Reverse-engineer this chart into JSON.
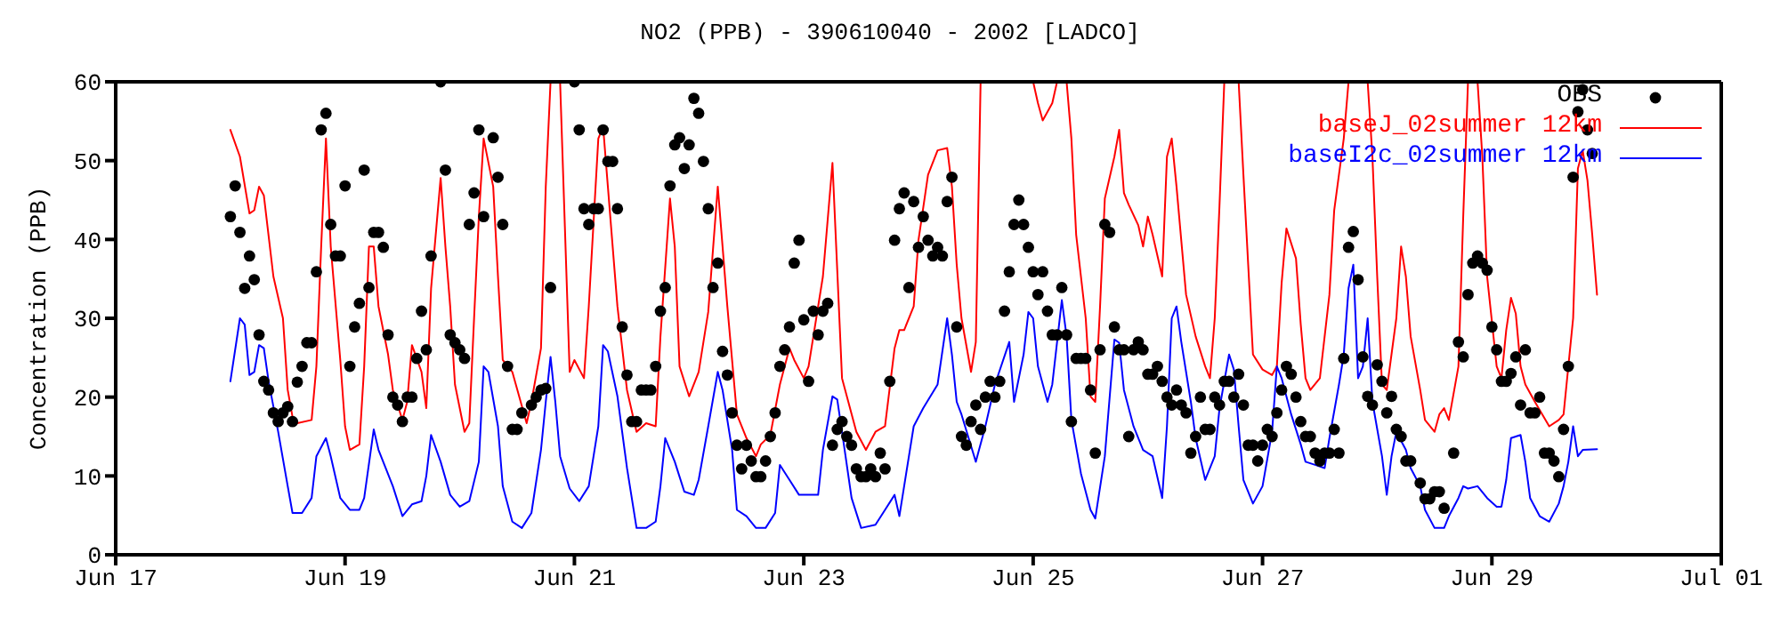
{
  "chart_data": {
    "type": "line",
    "title": "NO2 (PPB) - 390610040 - 2002 [LADCO]",
    "ylabel": "Concentration (PPB)",
    "xlim": [
      "2002-06-17",
      "2002-07-01"
    ],
    "xticks": [
      {
        "value": "2002-06-17",
        "label": "Jun 17"
      },
      {
        "value": "2002-06-19",
        "label": "Jun 19"
      },
      {
        "value": "2002-06-21",
        "label": "Jun 21"
      },
      {
        "value": "2002-06-23",
        "label": "Jun 23"
      },
      {
        "value": "2002-06-25",
        "label": "Jun 25"
      },
      {
        "value": "2002-06-27",
        "label": "Jun 27"
      },
      {
        "value": "2002-06-29",
        "label": "Jun 29"
      },
      {
        "value": "2002-07-01",
        "label": "Jul 01"
      }
    ],
    "ylim": [
      0,
      60
    ],
    "yticks": [
      0,
      10,
      20,
      30,
      40,
      50,
      60
    ],
    "grid": false,
    "legend": "top right",
    "series": [
      {
        "name": "OBS",
        "type": "scatter",
        "marker": "circle",
        "color": "#000000",
        "x": [
          "2002-06-18T00:00",
          "2002-06-18T01:00",
          "2002-06-18T02:00",
          "2002-06-18T03:00",
          "2002-06-18T04:00",
          "2002-06-18T05:00",
          "2002-06-18T06:00",
          "2002-06-18T07:00",
          "2002-06-18T08:00",
          "2002-06-18T09:00",
          "2002-06-18T10:00",
          "2002-06-18T11:00",
          "2002-06-18T12:00",
          "2002-06-18T13:00",
          "2002-06-18T14:00",
          "2002-06-18T15:00",
          "2002-06-18T16:00",
          "2002-06-18T17:00",
          "2002-06-18T18:00",
          "2002-06-18T19:00",
          "2002-06-18T20:00",
          "2002-06-18T21:00",
          "2002-06-18T22:00",
          "2002-06-18T23:00",
          "2002-06-19T00:00",
          "2002-06-19T01:00",
          "2002-06-19T02:00",
          "2002-06-19T03:00",
          "2002-06-19T04:00",
          "2002-06-19T05:00",
          "2002-06-19T06:00",
          "2002-06-19T07:00",
          "2002-06-19T08:00",
          "2002-06-19T09:00",
          "2002-06-19T10:00",
          "2002-06-19T11:00",
          "2002-06-19T12:00",
          "2002-06-19T13:00",
          "2002-06-19T14:00",
          "2002-06-19T15:00",
          "2002-06-19T16:00",
          "2002-06-19T17:00",
          "2002-06-19T18:00",
          "2002-06-19T20:00",
          "2002-06-19T21:00",
          "2002-06-19T22:00",
          "2002-06-19T23:00",
          "2002-06-20T00:00",
          "2002-06-20T01:00",
          "2002-06-20T02:00",
          "2002-06-20T03:00",
          "2002-06-20T04:00",
          "2002-06-20T05:00",
          "2002-06-20T07:00",
          "2002-06-20T08:00",
          "2002-06-20T09:00",
          "2002-06-20T10:00",
          "2002-06-20T11:00",
          "2002-06-20T12:00",
          "2002-06-20T13:00",
          "2002-06-20T15:00",
          "2002-06-20T16:00",
          "2002-06-20T17:00",
          "2002-06-20T18:00",
          "2002-06-20T19:00",
          "2002-06-21T00:00",
          "2002-06-21T01:00",
          "2002-06-21T02:00",
          "2002-06-21T03:00",
          "2002-06-21T04:00",
          "2002-06-21T05:00",
          "2002-06-21T06:00",
          "2002-06-21T07:00",
          "2002-06-21T08:00",
          "2002-06-21T09:00",
          "2002-06-21T10:00",
          "2002-06-21T11:00",
          "2002-06-21T12:00",
          "2002-06-21T13:00",
          "2002-06-21T14:00",
          "2002-06-21T15:00",
          "2002-06-21T16:00",
          "2002-06-21T17:00",
          "2002-06-21T18:00",
          "2002-06-21T19:00",
          "2002-06-21T20:00",
          "2002-06-21T21:00",
          "2002-06-21T22:00",
          "2002-06-21T23:00",
          "2002-06-22T00:00",
          "2002-06-22T01:00",
          "2002-06-22T02:00",
          "2002-06-22T03:00",
          "2002-06-22T04:00",
          "2002-06-22T05:00",
          "2002-06-22T06:00",
          "2002-06-22T07:00",
          "2002-06-22T08:00",
          "2002-06-22T09:00",
          "2002-06-22T10:00",
          "2002-06-22T11:00",
          "2002-06-22T12:00",
          "2002-06-22T13:00",
          "2002-06-22T14:00",
          "2002-06-22T15:00",
          "2002-06-22T16:00",
          "2002-06-22T17:00",
          "2002-06-22T18:00",
          "2002-06-22T19:00",
          "2002-06-22T20:00",
          "2002-06-22T21:00",
          "2002-06-22T22:00",
          "2002-06-22T23:00",
          "2002-06-23T00:00",
          "2002-06-23T01:00",
          "2002-06-23T02:00",
          "2002-06-23T03:00",
          "2002-06-23T04:00",
          "2002-06-23T05:00",
          "2002-06-23T06:00",
          "2002-06-23T07:00",
          "2002-06-23T08:00",
          "2002-06-23T09:00",
          "2002-06-23T10:00",
          "2002-06-23T11:00",
          "2002-06-23T12:00",
          "2002-06-23T13:00",
          "2002-06-23T14:00",
          "2002-06-23T15:00",
          "2002-06-23T16:00",
          "2002-06-23T17:00",
          "2002-06-23T18:00",
          "2002-06-23T19:00",
          "2002-06-23T20:00",
          "2002-06-23T21:00",
          "2002-06-23T22:00",
          "2002-06-23T23:00",
          "2002-06-24T00:00",
          "2002-06-24T01:00",
          "2002-06-24T02:00",
          "2002-06-24T03:00",
          "2002-06-24T04:00",
          "2002-06-24T05:00",
          "2002-06-24T06:00",
          "2002-06-24T07:00",
          "2002-06-24T08:00",
          "2002-06-24T09:00",
          "2002-06-24T10:00",
          "2002-06-24T11:00",
          "2002-06-24T12:00",
          "2002-06-24T13:00",
          "2002-06-24T14:00",
          "2002-06-24T15:00",
          "2002-06-24T16:00",
          "2002-06-24T17:00",
          "2002-06-24T18:00",
          "2002-06-24T19:00",
          "2002-06-24T20:00",
          "2002-06-24T21:00",
          "2002-06-24T22:00",
          "2002-06-24T23:00",
          "2002-06-25T00:00",
          "2002-06-25T01:00",
          "2002-06-25T02:00",
          "2002-06-25T03:00",
          "2002-06-25T04:00",
          "2002-06-25T05:00",
          "2002-06-25T06:00",
          "2002-06-25T07:00",
          "2002-06-25T08:00",
          "2002-06-25T09:00",
          "2002-06-25T10:00",
          "2002-06-25T11:00",
          "2002-06-25T12:00",
          "2002-06-25T13:00",
          "2002-06-25T14:00",
          "2002-06-25T15:00",
          "2002-06-25T16:00",
          "2002-06-25T17:00",
          "2002-06-25T18:00",
          "2002-06-25T19:00",
          "2002-06-25T20:00",
          "2002-06-25T21:00",
          "2002-06-25T22:00",
          "2002-06-25T23:00",
          "2002-06-26T00:00",
          "2002-06-26T01:00",
          "2002-06-26T02:00",
          "2002-06-26T03:00",
          "2002-06-26T04:00",
          "2002-06-26T05:00",
          "2002-06-26T06:00",
          "2002-06-26T07:00",
          "2002-06-26T08:00",
          "2002-06-26T09:00",
          "2002-06-26T10:00",
          "2002-06-26T11:00",
          "2002-06-26T12:00",
          "2002-06-26T13:00",
          "2002-06-26T14:00",
          "2002-06-26T15:00",
          "2002-06-26T16:00",
          "2002-06-26T17:00",
          "2002-06-26T18:00",
          "2002-06-26T19:00",
          "2002-06-26T20:00",
          "2002-06-26T21:00",
          "2002-06-26T22:00",
          "2002-06-26T23:00",
          "2002-06-27T00:00",
          "2002-06-27T01:00",
          "2002-06-27T02:00",
          "2002-06-27T03:00",
          "2002-06-27T04:00",
          "2002-06-27T05:00",
          "2002-06-27T06:00",
          "2002-06-27T07:00",
          "2002-06-27T08:00",
          "2002-06-27T09:00",
          "2002-06-27T10:00",
          "2002-06-27T11:00",
          "2002-06-27T12:00",
          "2002-06-27T13:00",
          "2002-06-27T14:00",
          "2002-06-27T15:00",
          "2002-06-27T16:00",
          "2002-06-27T17:00",
          "2002-06-27T18:00",
          "2002-06-27T19:00",
          "2002-06-27T20:00",
          "2002-06-27T21:00",
          "2002-06-27T22:00",
          "2002-06-27T23:00",
          "2002-06-28T00:00",
          "2002-06-28T01:00",
          "2002-06-28T02:00",
          "2002-06-28T03:00",
          "2002-06-28T04:00",
          "2002-06-28T05:00",
          "2002-06-28T06:00",
          "2002-06-28T07:00",
          "2002-06-28T09:00",
          "2002-06-28T10:00",
          "2002-06-28T11:00",
          "2002-06-28T12:00",
          "2002-06-28T13:00",
          "2002-06-28T14:00",
          "2002-06-28T16:00",
          "2002-06-28T17:00",
          "2002-06-28T18:00",
          "2002-06-28T19:00",
          "2002-06-28T20:00",
          "2002-06-28T21:00",
          "2002-06-28T22:00",
          "2002-06-28T23:00",
          "2002-06-29T00:00",
          "2002-06-29T01:00",
          "2002-06-29T02:00",
          "2002-06-29T03:00",
          "2002-06-29T04:00",
          "2002-06-29T05:00",
          "2002-06-29T06:00",
          "2002-06-29T07:00",
          "2002-06-29T08:00",
          "2002-06-29T09:00",
          "2002-06-29T10:00",
          "2002-06-29T11:00",
          "2002-06-29T12:00",
          "2002-06-29T13:00",
          "2002-06-29T14:00",
          "2002-06-29T15:00",
          "2002-06-29T16:00",
          "2002-06-29T17:00",
          "2002-06-29T18:00",
          "2002-06-29T19:00",
          "2002-06-29T20:00",
          "2002-06-29T21:00"
        ],
        "values": [
          42.9,
          46.8,
          40.9,
          33.8,
          37.9,
          34.9,
          27.9,
          22.0,
          20.9,
          18.0,
          16.9,
          18.0,
          18.8,
          16.9,
          21.9,
          23.9,
          26.9,
          26.9,
          35.9,
          53.9,
          56.0,
          41.9,
          37.9,
          37.9,
          46.8,
          23.9,
          28.9,
          31.9,
          48.8,
          33.9,
          40.9,
          40.9,
          39.0,
          27.9,
          20.0,
          19.0,
          16.9,
          20.0,
          20.0,
          24.9,
          30.9,
          26.0,
          37.9,
          60,
          48.8,
          27.9,
          26.9,
          26.0,
          24.9,
          41.9,
          45.9,
          53.9,
          42.9,
          52.9,
          47.9,
          41.9,
          23.9,
          15.9,
          15.9,
          18.0,
          19.0,
          20.0,
          20.9,
          21.1,
          33.9,
          60,
          53.9,
          43.9,
          41.9,
          43.9,
          43.9,
          53.9,
          49.9,
          49.9,
          43.9,
          28.9,
          22.8,
          16.9,
          16.9,
          20.9,
          20.9,
          20.9,
          23.9,
          30.9,
          33.9,
          46.8,
          52.0,
          52.9,
          49.0,
          52.0,
          57.9,
          56.0,
          49.9,
          43.9,
          33.9,
          37.0,
          25.8,
          22.8,
          18.0,
          13.9,
          10.9,
          13.9,
          11.9,
          9.9,
          9.9,
          11.9,
          15.0,
          18.0,
          23.9,
          26.0,
          28.9,
          37.0,
          39.9,
          29.8,
          22.0,
          30.9,
          27.9,
          30.9,
          31.9,
          13.9,
          15.9,
          16.9,
          15.0,
          13.9,
          10.9,
          9.9,
          9.9,
          10.9,
          9.9,
          12.9,
          10.9,
          22.0,
          39.9,
          43.9,
          45.9,
          33.9,
          44.8,
          39.0,
          42.9,
          39.9,
          37.9,
          39.0,
          37.9,
          44.8,
          47.9,
          28.9,
          15.0,
          13.9,
          16.9,
          19.0,
          15.9,
          20.0,
          22.0,
          20.0,
          22.0,
          30.9,
          35.9,
          41.9,
          45.0,
          41.9,
          39.0,
          35.9,
          33.0,
          35.9,
          30.9,
          27.9,
          27.9,
          33.9,
          27.9,
          16.9,
          24.9,
          24.9,
          24.9,
          20.9,
          12.9,
          26.0,
          41.9,
          40.9,
          28.9,
          26.0,
          26.0,
          15.0,
          26.0,
          27.0,
          26.0,
          22.9,
          22.9,
          23.9,
          22.0,
          20.0,
          19.0,
          20.9,
          19.0,
          18.0,
          12.9,
          15.0,
          20.0,
          15.9,
          15.9,
          20.0,
          19.0,
          22.0,
          22.0,
          20.0,
          22.9,
          19.0,
          13.9,
          13.9,
          11.9,
          13.9,
          15.9,
          15.0,
          18.0,
          20.9,
          23.9,
          22.9,
          20.0,
          16.9,
          15.0,
          15.0,
          12.9,
          11.9,
          12.9,
          12.9,
          15.9,
          12.9,
          24.9,
          39.0,
          41.0,
          34.9,
          25.1,
          20.1,
          19.0,
          24.1,
          22.0,
          18.0,
          20.1,
          15.9,
          15.0,
          11.9,
          11.9,
          9.1,
          7.1,
          7.1,
          8.0,
          8.0,
          5.9,
          12.9,
          27.0,
          25.1,
          33.0,
          37.0,
          37.9,
          37.0,
          36.1,
          28.9,
          26.0,
          22.0,
          22.0,
          23.0,
          25.1,
          19.0,
          26.0,
          18.0,
          18.0,
          20.0,
          12.9,
          12.9,
          11.9,
          9.9,
          15.9,
          23.9,
          47.9,
          56.2,
          59.0,
          53.9,
          50.9
        ]
      },
      {
        "name": "baseJ_02summer 12km",
        "marker": "none",
        "color": "#ff0000",
        "x": [
          "2002-06-18T00:00",
          "2002-06-18T02:00",
          "2002-06-18T04:00",
          "2002-06-18T05:00",
          "2002-06-18T06:00",
          "2002-06-18T07:00",
          "2002-06-18T09:00",
          "2002-06-18T11:00",
          "2002-06-18T12:00",
          "2002-06-18T13:00",
          "2002-06-18T14:00",
          "2002-06-18T17:00",
          "2002-06-18T18:00",
          "2002-06-18T19:00",
          "2002-06-18T20:00",
          "2002-06-18T21:00",
          "2002-06-18T23:00",
          "2002-06-19T00:00",
          "2002-06-19T01:00",
          "2002-06-19T03:00",
          "2002-06-19T04:00",
          "2002-06-19T05:00",
          "2002-06-19T06:00",
          "2002-06-19T07:00",
          "2002-06-19T09:00",
          "2002-06-19T10:00",
          "2002-06-19T12:00",
          "2002-06-19T13:00",
          "2002-06-19T14:00",
          "2002-06-19T16:00",
          "2002-06-19T17:00",
          "2002-06-19T18:00",
          "2002-06-19T20:00",
          "2002-06-19T21:00",
          "2002-06-19T22:00",
          "2002-06-19T23:00",
          "2002-06-20T01:00",
          "2002-06-20T02:00",
          "2002-06-20T03:00",
          "2002-06-20T04:00",
          "2002-06-20T05:00",
          "2002-06-20T07:00",
          "2002-06-20T08:00",
          "2002-06-20T09:00",
          "2002-06-20T11:00",
          "2002-06-20T14:00",
          "2002-06-20T15:00",
          "2002-06-20T17:00",
          "2002-06-20T18:00",
          "2002-06-20T19:00",
          "2002-06-20T20:00",
          "2002-06-20T21:00",
          "2002-06-20T23:00",
          "2002-06-21T00:00",
          "2002-06-21T02:00",
          "2002-06-21T03:00",
          "2002-06-21T05:00",
          "2002-06-21T06:00",
          "2002-06-21T07:00",
          "2002-06-21T09:00",
          "2002-06-21T11:00",
          "2002-06-21T13:00",
          "2002-06-21T15:00",
          "2002-06-21T17:00",
          "2002-06-21T18:00",
          "2002-06-21T20:00",
          "2002-06-21T21:00",
          "2002-06-21T22:00",
          "2002-06-22T00:00",
          "2002-06-22T02:00",
          "2002-06-22T04:00",
          "2002-06-22T06:00",
          "2002-06-22T08:00",
          "2002-06-22T10:00",
          "2002-06-22T12:00",
          "2002-06-22T14:00",
          "2002-06-22T15:00",
          "2002-06-22T17:00",
          "2002-06-22T19:00",
          "2002-06-22T21:00",
          "2002-06-22T22:00",
          "2002-06-23T00:00",
          "2002-06-23T01:00",
          "2002-06-23T04:00",
          "2002-06-23T06:00",
          "2002-06-23T07:00",
          "2002-06-23T08:00",
          "2002-06-23T11:00",
          "2002-06-23T13:00",
          "2002-06-23T15:00",
          "2002-06-23T17:00",
          "2002-06-23T19:00",
          "2002-06-23T20:00",
          "2002-06-23T21:00",
          "2002-06-23T23:00",
          "2002-06-24T00:00",
          "2002-06-24T02:00",
          "2002-06-24T04:00",
          "2002-06-24T06:00",
          "2002-06-24T07:00",
          "2002-06-24T08:00",
          "2002-06-24T09:00",
          "2002-06-24T11:00",
          "2002-06-24T12:00",
          "2002-06-24T13:00",
          "2002-06-24T14:00",
          "2002-06-25T00:00",
          "2002-06-25T01:00",
          "2002-06-25T02:00",
          "2002-06-25T04:00",
          "2002-06-25T05:00",
          "2002-06-25T06:00",
          "2002-06-25T07:00",
          "2002-06-25T08:00",
          "2002-06-25T09:00",
          "2002-06-25T11:00",
          "2002-06-25T12:00",
          "2002-06-25T13:00",
          "2002-06-25T14:00",
          "2002-06-25T15:00",
          "2002-06-25T17:00",
          "2002-06-25T18:00",
          "2002-06-25T19:00",
          "2002-06-25T20:00",
          "2002-06-25T22:00",
          "2002-06-25T23:00",
          "2002-06-26T00:00",
          "2002-06-26T01:00",
          "2002-06-26T03:00",
          "2002-06-26T04:00",
          "2002-06-26T05:00",
          "2002-06-26T06:00",
          "2002-06-26T08:00",
          "2002-06-26T10:00",
          "2002-06-26T12:00",
          "2002-06-26T13:00",
          "2002-06-26T14:00",
          "2002-06-26T15:00",
          "2002-06-26T16:00",
          "2002-06-26T17:00",
          "2002-06-26T19:00",
          "2002-06-26T20:00",
          "2002-06-26T21:00",
          "2002-06-26T22:00",
          "2002-06-27T00:00",
          "2002-06-27T02:00",
          "2002-06-27T03:00",
          "2002-06-27T04:00",
          "2002-06-27T05:00",
          "2002-06-27T07:00",
          "2002-06-27T08:00",
          "2002-06-27T09:00",
          "2002-06-27T10:00",
          "2002-06-27T12:00",
          "2002-06-27T14:00",
          "2002-06-27T15:00",
          "2002-06-27T17:00",
          "2002-06-27T18:00",
          "2002-06-27T19:00",
          "2002-06-27T22:00",
          "2002-06-27T23:00",
          "2002-06-28T00:00",
          "2002-06-28T01:00",
          "2002-06-28T02:00",
          "2002-06-28T04:00",
          "2002-06-28T05:00",
          "2002-06-28T06:00",
          "2002-06-28T07:00",
          "2002-06-28T09:00",
          "2002-06-28T10:00",
          "2002-06-28T12:00",
          "2002-06-28T13:00",
          "2002-06-28T14:00",
          "2002-06-28T15:00",
          "2002-06-28T17:00",
          "2002-06-28T18:00",
          "2002-06-28T19:00",
          "2002-06-28T20:00",
          "2002-06-28T21:00",
          "2002-06-28T22:00",
          "2002-06-28T23:00",
          "2002-06-29T01:00",
          "2002-06-29T02:00",
          "2002-06-29T03:00",
          "2002-06-29T04:00",
          "2002-06-29T05:00",
          "2002-06-29T06:00",
          "2002-06-29T07:00",
          "2002-06-29T09:00",
          "2002-06-29T12:00",
          "2002-06-29T14:00",
          "2002-06-29T15:00",
          "2002-06-29T17:00",
          "2002-06-29T18:00",
          "2002-06-29T19:00",
          "2002-06-29T20:00",
          "2002-06-29T21:00",
          "2002-06-29T22:00"
        ],
        "values": [
          53.9,
          50.5,
          43.3,
          43.7,
          46.7,
          45.6,
          35.3,
          30.0,
          20.9,
          17.5,
          16.7,
          17.1,
          23.9,
          39.1,
          52.8,
          39.1,
          24.7,
          16.3,
          13.3,
          14.0,
          23.9,
          39.1,
          39.1,
          31.5,
          25.4,
          20.9,
          17.1,
          19.4,
          26.6,
          23.2,
          18.6,
          33.8,
          47.8,
          39.1,
          31.5,
          21.6,
          15.6,
          16.7,
          30.0,
          42.9,
          52.8,
          46.7,
          35.3,
          24.7,
          23.2,
          16.7,
          19.4,
          26.2,
          46.7,
          60,
          null,
          60,
          23.2,
          24.7,
          22.4,
          31.5,
          52.8,
          54.3,
          46.7,
          31.5,
          20.9,
          15.6,
          16.7,
          16.3,
          27.7,
          45.2,
          39.1,
          23.9,
          20.1,
          23.2,
          30.8,
          46.7,
          31.5,
          17.8,
          14.8,
          12.5,
          14.0,
          15.2,
          21.6,
          26.2,
          24.7,
          22.4,
          23.9,
          35.3,
          49.7,
          36.1,
          22.4,
          15.6,
          13.3,
          15.6,
          16.3,
          26.2,
          28.5,
          28.5,
          31.5,
          39.9,
          48.2,
          51.3,
          51.6,
          46.7,
          36.8,
          30.0,
          23.2,
          27.0,
          60,
          null,
          60,
          57.3,
          55.1,
          57.3,
          60,
          null,
          60,
          52.8,
          40.6,
          30.0,
          20.1,
          19.4,
          31.5,
          45.2,
          50.5,
          53.9,
          45.9,
          44.4,
          41.8,
          39.1,
          42.9,
          40.6,
          35.3,
          50.5,
          52.8,
          46.7,
          33.0,
          27.7,
          23.9,
          22.4,
          30.0,
          44.4,
          60,
          null,
          60,
          48.2,
          36.8,
          25.4,
          23.5,
          22.8,
          23.9,
          34.5,
          41.4,
          37.6,
          29.2,
          22.4,
          20.9,
          22.4,
          33.0,
          43.7,
          52.8,
          60,
          null,
          60,
          50.5,
          35.3,
          21.6,
          20.9,
          30.0,
          39.1,
          35.3,
          27.7,
          20.9,
          17.1,
          15.6,
          17.8,
          18.6,
          17.1,
          23.9,
          42.9,
          60,
          null,
          60,
          50.5,
          35.3,
          23.9,
          22.4,
          28.5,
          32.6,
          30.6,
          23.9,
          21.6,
          19.4,
          16.3,
          17.1,
          17.8,
          30.0,
          49.0,
          51.3,
          47.5,
          40.6,
          33.0
        ]
      },
      {
        "name": "baseI2c_02summer 12km",
        "marker": "none",
        "color": "#0000ff",
        "x": [
          "2002-06-18T00:00",
          "2002-06-18T02:00",
          "2002-06-18T03:00",
          "2002-06-18T04:00",
          "2002-06-18T05:00",
          "2002-06-18T06:00",
          "2002-06-18T07:00",
          "2002-06-18T08:00",
          "2002-06-18T10:00",
          "2002-06-18T12:00",
          "2002-06-18T13:00",
          "2002-06-18T15:00",
          "2002-06-18T17:00",
          "2002-06-18T18:00",
          "2002-06-18T20:00",
          "2002-06-18T21:00",
          "2002-06-18T23:00",
          "2002-06-19T01:00",
          "2002-06-19T03:00",
          "2002-06-19T04:00",
          "2002-06-19T06:00",
          "2002-06-19T07:00",
          "2002-06-19T10:00",
          "2002-06-19T12:00",
          "2002-06-19T14:00",
          "2002-06-19T16:00",
          "2002-06-19T17:00",
          "2002-06-19T18:00",
          "2002-06-19T20:00",
          "2002-06-19T22:00",
          "2002-06-20T00:00",
          "2002-06-20T02:00",
          "2002-06-20T04:00",
          "2002-06-20T05:00",
          "2002-06-20T06:00",
          "2002-06-20T08:00",
          "2002-06-20T09:00",
          "2002-06-20T11:00",
          "2002-06-20T13:00",
          "2002-06-20T15:00",
          "2002-06-20T17:00",
          "2002-06-20T18:00",
          "2002-06-20T19:00",
          "2002-06-20T20:00",
          "2002-06-20T21:00",
          "2002-06-20T23:00",
          "2002-06-21T01:00",
          "2002-06-21T03:00",
          "2002-06-21T05:00",
          "2002-06-21T06:00",
          "2002-06-21T07:00",
          "2002-06-21T09:00",
          "2002-06-21T11:00",
          "2002-06-21T13:00",
          "2002-06-21T15:00",
          "2002-06-21T17:00",
          "2002-06-21T18:00",
          "2002-06-21T19:00",
          "2002-06-21T21:00",
          "2002-06-21T23:00",
          "2002-06-22T01:00",
          "2002-06-22T02:00",
          "2002-06-22T04:00",
          "2002-06-22T06:00",
          "2002-06-22T07:00",
          "2002-06-22T09:00",
          "2002-06-22T10:00",
          "2002-06-22T12:00",
          "2002-06-22T14:00",
          "2002-06-22T16:00",
          "2002-06-22T18:00",
          "2002-06-22T19:00",
          "2002-06-22T21:00",
          "2002-06-22T23:00",
          "2002-06-23T03:00",
          "2002-06-23T04:00",
          "2002-06-23T06:00",
          "2002-06-23T07:00",
          "2002-06-23T08:00",
          "2002-06-23T10:00",
          "2002-06-23T12:00",
          "2002-06-23T15:00",
          "2002-06-23T17:00",
          "2002-06-23T19:00",
          "2002-06-23T20:00",
          "2002-06-23T21:00",
          "2002-06-23T23:00",
          "2002-06-24T01:00",
          "2002-06-24T04:00",
          "2002-06-24T06:00",
          "2002-06-24T07:00",
          "2002-06-24T08:00",
          "2002-06-24T09:00",
          "2002-06-24T12:00",
          "2002-06-24T14:00",
          "2002-06-24T16:00",
          "2002-06-24T19:00",
          "2002-06-24T20:00",
          "2002-06-24T22:00",
          "2002-06-24T23:00",
          "2002-06-25T00:00",
          "2002-06-25T01:00",
          "2002-06-25T03:00",
          "2002-06-25T04:00",
          "2002-06-25T06:00",
          "2002-06-25T07:00",
          "2002-06-25T08:00",
          "2002-06-25T10:00",
          "2002-06-25T12:00",
          "2002-06-25T13:00",
          "2002-06-25T15:00",
          "2002-06-25T17:00",
          "2002-06-25T18:00",
          "2002-06-25T19:00",
          "2002-06-25T21:00",
          "2002-06-25T23:00",
          "2002-06-26T01:00",
          "2002-06-26T03:00",
          "2002-06-26T04:00",
          "2002-06-26T05:00",
          "2002-06-26T06:00",
          "2002-06-26T07:00",
          "2002-06-26T09:00",
          "2002-06-26T10:00",
          "2002-06-26T12:00",
          "2002-06-26T14:00",
          "2002-06-26T15:00",
          "2002-06-26T17:00",
          "2002-06-26T18:00",
          "2002-06-26T19:00",
          "2002-06-26T20:00",
          "2002-06-26T22:00",
          "2002-06-27T00:00",
          "2002-06-27T02:00",
          "2002-06-27T03:00",
          "2002-06-27T04:00",
          "2002-06-27T06:00",
          "2002-06-27T08:00",
          "2002-06-27T09:00",
          "2002-06-27T11:00",
          "2002-06-27T13:00",
          "2002-06-27T14:00",
          "2002-06-27T16:00",
          "2002-06-27T17:00",
          "2002-06-27T18:00",
          "2002-06-27T19:00",
          "2002-06-27T20:00",
          "2002-06-27T21:00",
          "2002-06-27T22:00",
          "2002-06-27T23:00",
          "2002-06-28T01:00",
          "2002-06-28T02:00",
          "2002-06-28T03:00",
          "2002-06-28T04:00",
          "2002-06-28T06:00",
          "2002-06-28T07:00",
          "2002-06-28T09:00",
          "2002-06-28T10:00",
          "2002-06-28T12:00",
          "2002-06-28T14:00",
          "2002-06-28T15:00",
          "2002-06-28T17:00",
          "2002-06-28T18:00",
          "2002-06-28T19:00",
          "2002-06-28T21:00",
          "2002-06-28T23:00",
          "2002-06-29T01:00",
          "2002-06-29T02:00",
          "2002-06-29T03:00",
          "2002-06-29T04:00",
          "2002-06-29T06:00",
          "2002-06-29T07:00",
          "2002-06-29T08:00",
          "2002-06-29T10:00",
          "2002-06-29T12:00",
          "2002-06-29T14:00",
          "2002-06-29T15:00",
          "2002-06-29T16:00",
          "2002-06-29T17:00",
          "2002-06-29T18:00",
          "2002-06-29T19:00",
          "2002-06-29T22:00"
        ],
        "values": [
          22.0,
          30.0,
          29.2,
          22.8,
          23.2,
          26.6,
          26.2,
          22.0,
          15.6,
          8.7,
          5.3,
          5.3,
          7.2,
          12.5,
          14.8,
          12.5,
          7.2,
          5.7,
          5.7,
          7.2,
          15.9,
          13.3,
          8.7,
          4.9,
          6.4,
          6.8,
          10.0,
          15.2,
          11.8,
          7.6,
          6.1,
          6.8,
          11.8,
          23.9,
          23.2,
          16.3,
          8.7,
          4.2,
          3.4,
          5.3,
          13.3,
          19.4,
          25.1,
          19.4,
          12.5,
          8.4,
          6.8,
          8.7,
          16.3,
          26.6,
          25.8,
          20.1,
          11.0,
          3.4,
          3.4,
          4.2,
          8.7,
          14.8,
          11.8,
          8.0,
          7.6,
          9.5,
          16.3,
          23.2,
          20.9,
          13.3,
          5.7,
          4.9,
          3.4,
          3.4,
          5.3,
          11.4,
          9.5,
          7.6,
          7.6,
          13.3,
          20.1,
          19.7,
          15.6,
          7.2,
          3.4,
          3.8,
          5.7,
          7.6,
          4.9,
          8.7,
          16.3,
          18.6,
          21.6,
          30.0,
          25.4,
          19.4,
          17.8,
          11.8,
          16.3,
          21.6,
          27.0,
          19.4,
          25.4,
          30.8,
          30.0,
          23.9,
          19.4,
          21.6,
          32.3,
          27.7,
          17.1,
          10.3,
          5.7,
          4.6,
          12.5,
          27.3,
          26.9,
          20.9,
          16.3,
          13.3,
          12.5,
          7.2,
          16.3,
          30.0,
          31.5,
          27.0,
          19.4,
          14.8,
          9.5,
          12.5,
          18.6,
          25.4,
          23.5,
          16.3,
          9.5,
          6.5,
          8.7,
          15.6,
          23.9,
          22.4,
          17.8,
          14.0,
          11.8,
          11.4,
          11.0,
          14.8,
          21.6,
          25.4,
          33.8,
          36.8,
          22.4,
          23.9,
          30.0,
          19.4,
          12.5,
          7.6,
          12.5,
          15.6,
          13.3,
          11.0,
          8.7,
          5.7,
          3.4,
          3.4,
          4.9,
          7.2,
          8.7,
          8.4,
          8.7,
          7.2,
          6.1,
          6.1,
          9.5,
          14.8,
          15.2,
          11.8,
          7.2,
          4.9,
          4.2,
          6.5,
          8.7,
          11.8,
          16.3,
          12.5,
          13.3,
          13.4
        ]
      }
    ]
  }
}
